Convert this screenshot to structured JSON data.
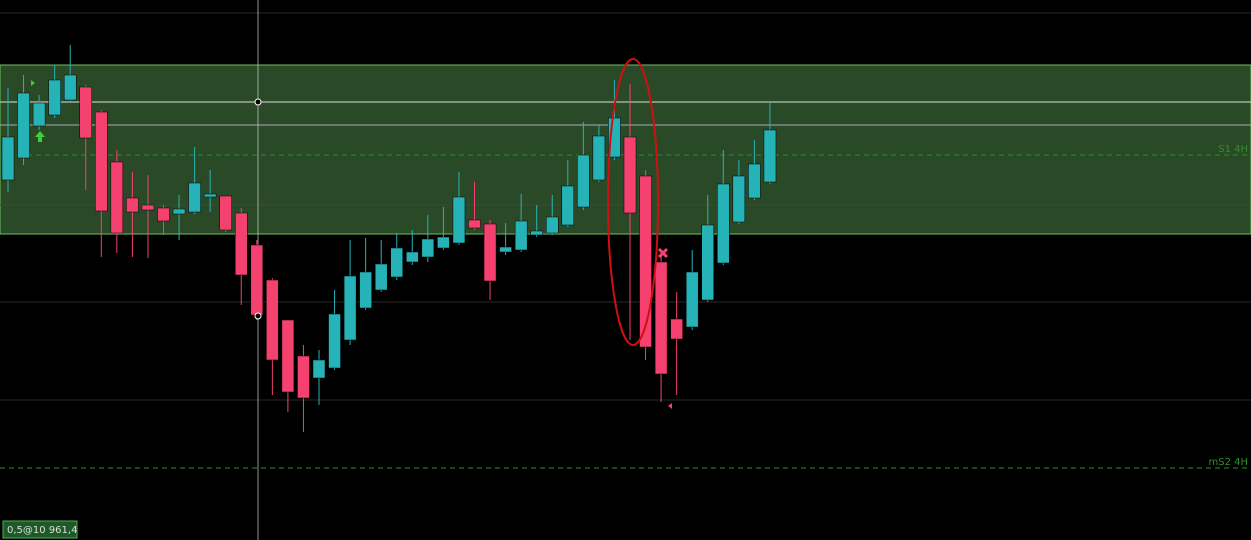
{
  "chart_data": {
    "type": "candlestick",
    "open": [
      360,
      382,
      414,
      425,
      440,
      453,
      428,
      378,
      342,
      335,
      332,
      326,
      328,
      343,
      344,
      327,
      295,
      260,
      220,
      184,
      162,
      172,
      200,
      232,
      250,
      263,
      278,
      283,
      292,
      297,
      320,
      316,
      288,
      290,
      305,
      307,
      315,
      333,
      360,
      383,
      403,
      364,
      278,
      221,
      213,
      240,
      277,
      318,
      342,
      358
    ],
    "high": [
      452,
      465,
      445,
      475,
      495,
      455,
      430,
      390,
      368,
      365,
      335,
      345,
      393,
      370,
      344,
      332,
      300,
      262,
      220,
      195,
      190,
      250,
      300,
      302,
      300,
      307,
      310,
      325,
      333,
      368,
      358,
      320,
      317,
      346,
      335,
      345,
      380,
      418,
      415,
      460,
      456,
      370,
      290,
      248,
      290,
      345,
      390,
      380,
      400,
      437
    ],
    "low": [
      348,
      375,
      410,
      422,
      438,
      350,
      283,
      287,
      283,
      282,
      305,
      300,
      326,
      328,
      308,
      235,
      220,
      145,
      128,
      108,
      135,
      170,
      195,
      230,
      248,
      260,
      275,
      278,
      290,
      295,
      310,
      240,
      285,
      288,
      303,
      305,
      313,
      330,
      358,
      380,
      200,
      180,
      138,
      145,
      210,
      238,
      275,
      316,
      340,
      356
    ],
    "close": [
      403,
      447,
      437,
      460,
      465,
      402,
      329,
      307,
      328,
      330,
      319,
      331,
      357,
      346,
      310,
      265,
      225,
      180,
      148,
      142,
      180,
      226,
      264,
      268,
      276,
      292,
      288,
      301,
      303,
      343,
      312,
      259,
      293,
      319,
      309,
      323,
      354,
      385,
      404,
      422,
      327,
      193,
      166,
      201,
      268,
      315,
      356,
      364,
      376,
      410
    ],
    "up_color": "#26b3b8",
    "down_color": "#f5416f",
    "ylim": [
      0,
      540
    ],
    "zone": [
      306,
      475
    ],
    "zone_color": "#2a4a27",
    "levels": [
      {
        "value": 385,
        "label": "S1 4H",
        "color": "#2f8f2f"
      },
      {
        "value": 72,
        "label": "mS2 4H",
        "color": "#2f8f2f"
      }
    ],
    "cursor_label": "0,5@10 961,4"
  }
}
